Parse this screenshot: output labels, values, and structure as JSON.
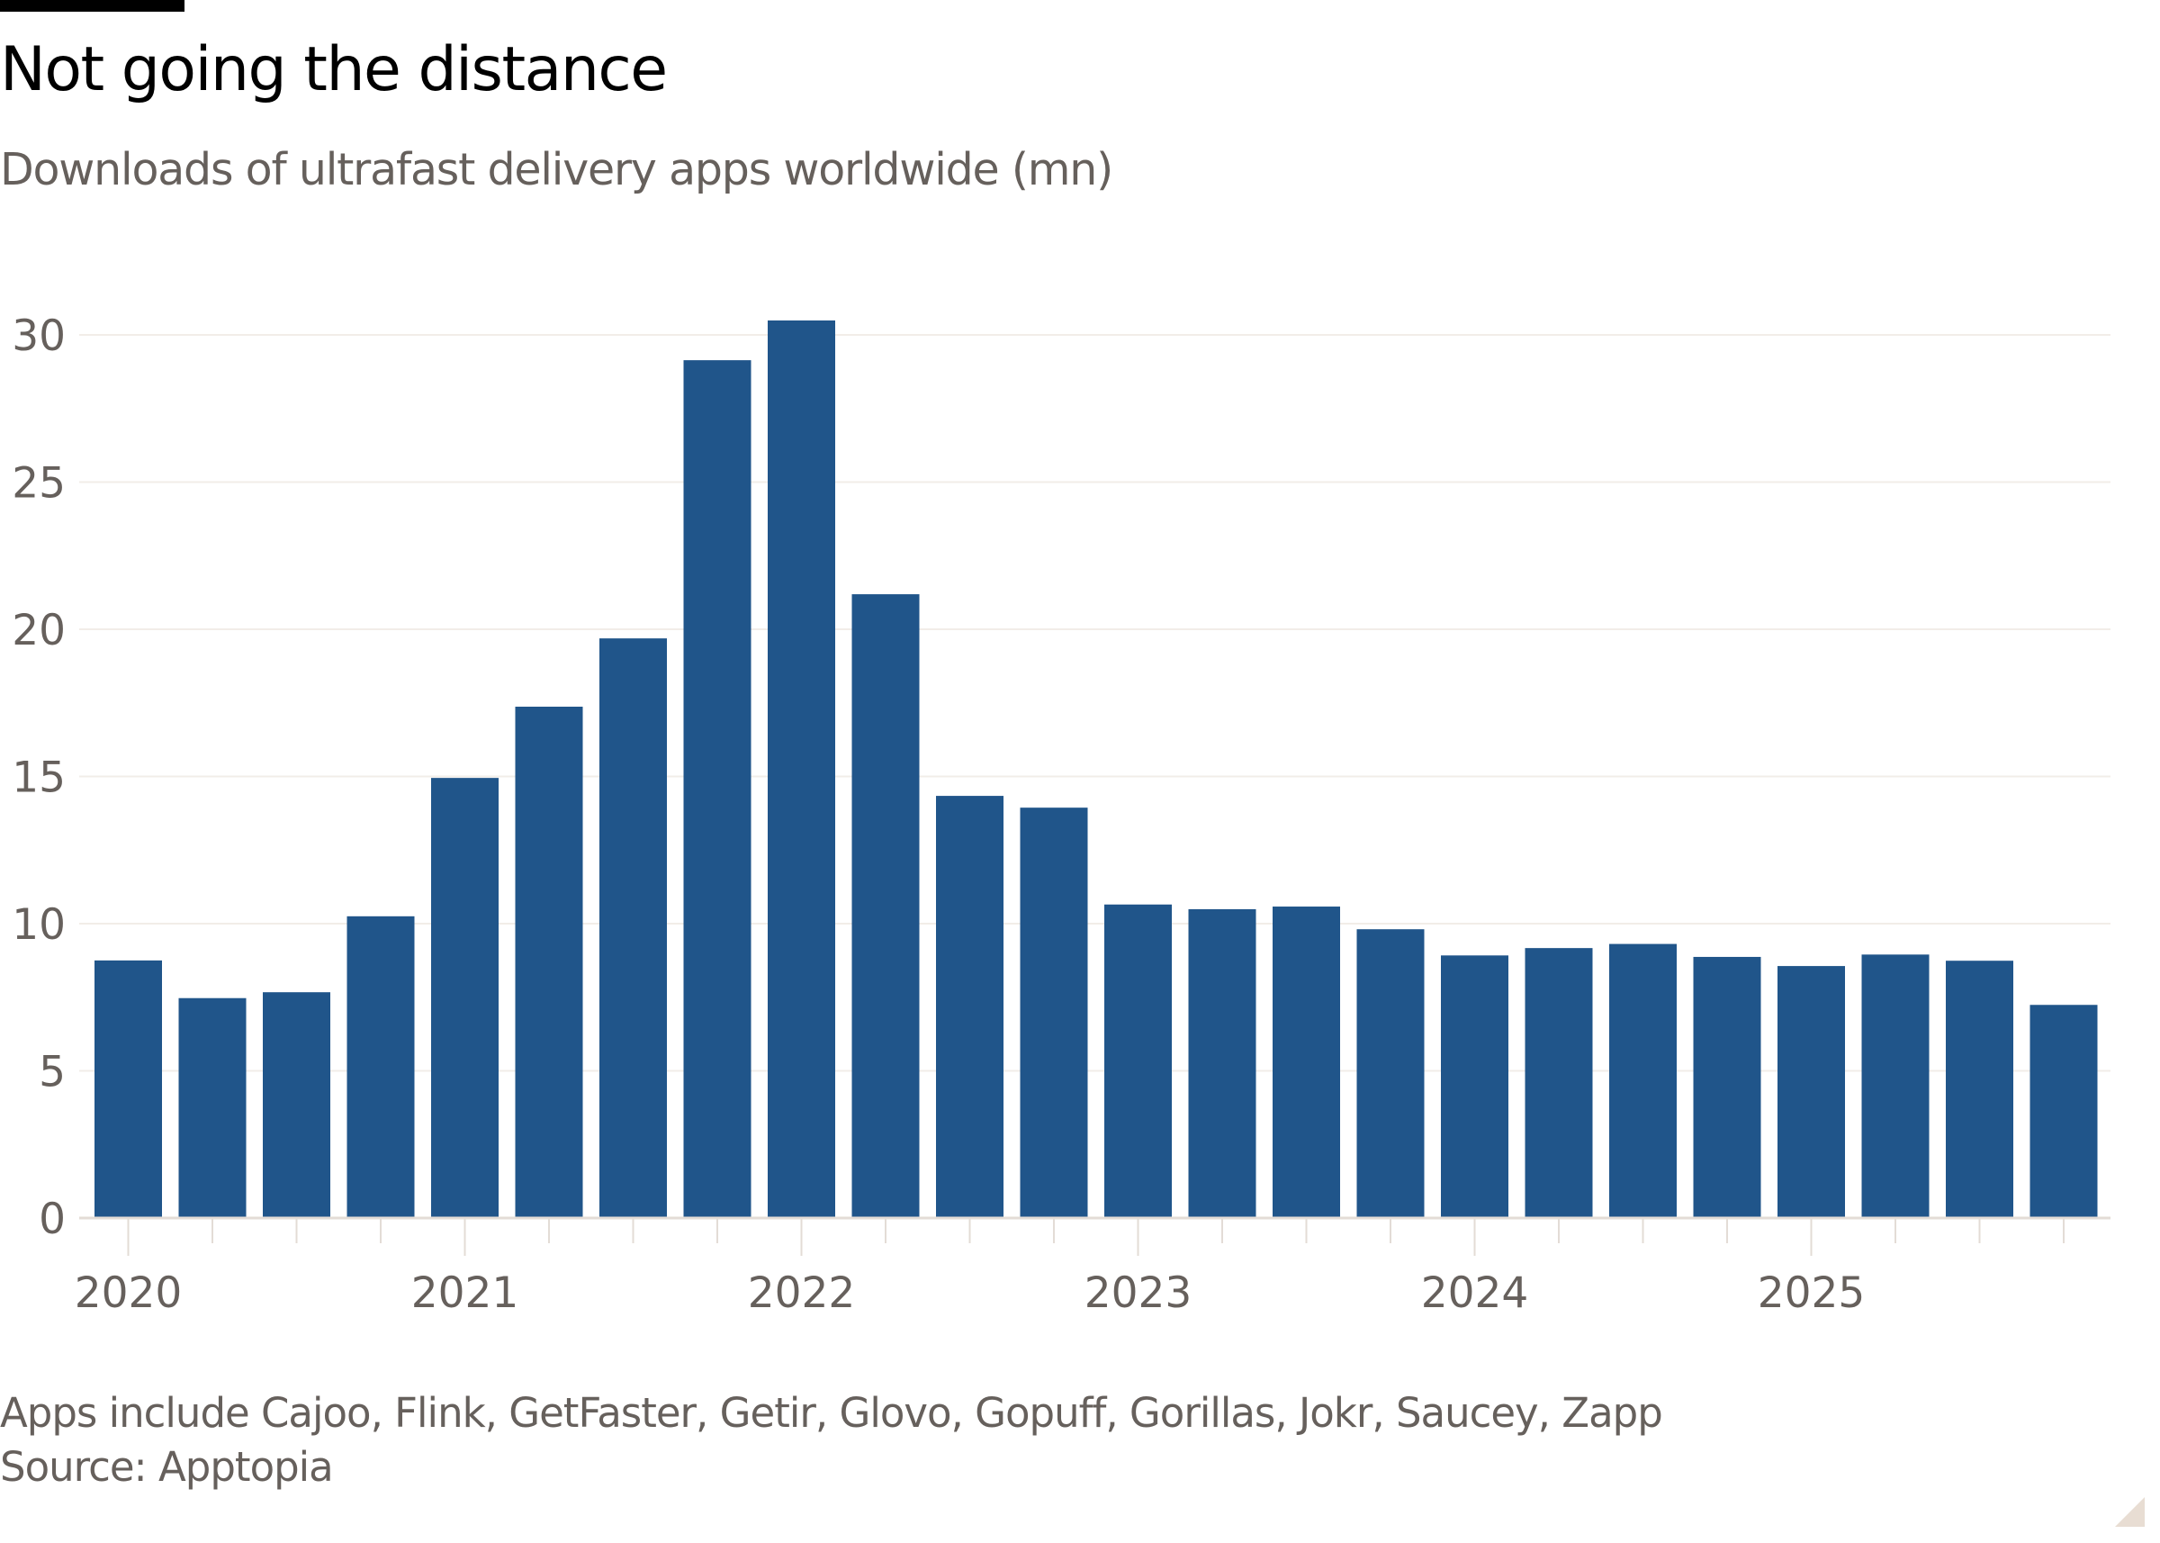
{
  "header": {
    "title": "Not going the distance",
    "subtitle": "Downloads of ultrafast delivery apps worldwide (mn)"
  },
  "footer": {
    "note": "Apps include Cajoo, Flink, GetFaster, Getir, Glovo, Gopuff, Gorillas, Jokr, Saucey, Zapp",
    "source": "Source: Apptopia"
  },
  "colors": {
    "bar": "#20558a",
    "grid": "#f2ede8",
    "axis": "#e3dcd6",
    "text_muted": "#66605c",
    "title": "#000000"
  },
  "chart_data": {
    "type": "bar",
    "title": "Not going the distance",
    "subtitle": "Downloads of ultrafast delivery apps worldwide (mn)",
    "xlabel": "",
    "ylabel": "",
    "ylim": [
      0,
      30
    ],
    "yticks": [
      0,
      5,
      10,
      15,
      20,
      25,
      30
    ],
    "grid": true,
    "legend": "none",
    "categories": [
      "2020 Q1",
      "2020 Q2",
      "2020 Q3",
      "2020 Q4",
      "2021 Q1",
      "2021 Q2",
      "2021 Q3",
      "2021 Q4",
      "2022 Q1",
      "2022 Q2",
      "2022 Q3",
      "2022 Q4",
      "2023 Q1",
      "2023 Q2",
      "2023 Q3",
      "2023 Q4",
      "2024 Q1",
      "2024 Q2",
      "2024 Q3",
      "2024 Q4",
      "2025 Q1",
      "2025 Q2",
      "2025 Q3",
      "2025 Q4"
    ],
    "values": [
      8.75,
      7.47,
      7.67,
      10.25,
      14.95,
      17.37,
      19.69,
      29.14,
      30.49,
      21.19,
      14.34,
      13.94,
      10.65,
      10.49,
      10.58,
      9.81,
      8.92,
      9.17,
      9.31,
      8.87,
      8.56,
      8.95,
      8.74,
      7.24
    ],
    "xtick_labels": [
      {
        "index": 0,
        "label": "2020"
      },
      {
        "index": 4,
        "label": "2021"
      },
      {
        "index": 8,
        "label": "2022"
      },
      {
        "index": 12,
        "label": "2023"
      },
      {
        "index": 16,
        "label": "2024"
      },
      {
        "index": 20,
        "label": "2025"
      }
    ]
  }
}
